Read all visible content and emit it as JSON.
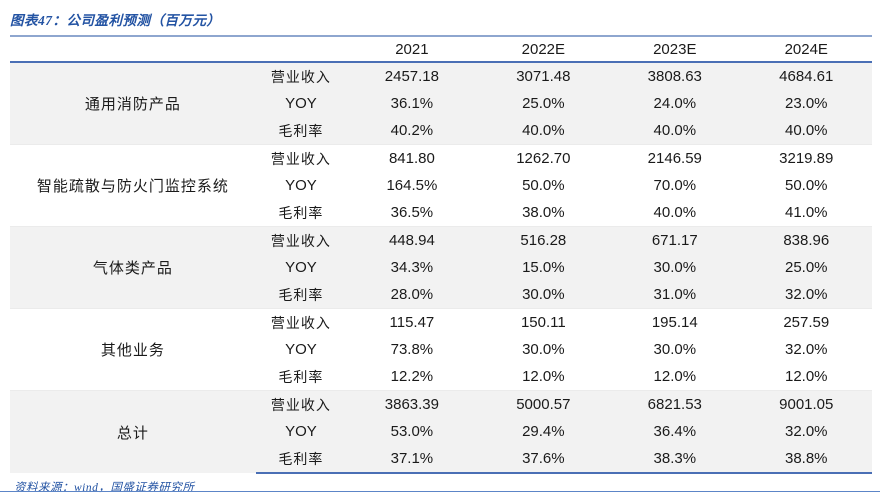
{
  "title": "图表47：公司盈利预测（百万元）",
  "footer": {
    "source": "资料来源：wind，国盛证券研究所"
  },
  "colors": {
    "accent_blue": "#2353a3",
    "rule_blue": "#4a6fb5",
    "rule_light_blue": "#8ea6cf",
    "stripe_bg": "#f2f2f2",
    "text": "#1a1a1a"
  },
  "table": {
    "year_headers": [
      "2021",
      "2022E",
      "2023E",
      "2024E"
    ],
    "metric_labels": [
      "营业收入",
      "YOY",
      "毛利率"
    ],
    "groups": [
      {
        "name": "通用消防产品",
        "rows": [
          [
            "2457.18",
            "3071.48",
            "3808.63",
            "4684.61"
          ],
          [
            "36.1%",
            "25.0%",
            "24.0%",
            "23.0%"
          ],
          [
            "40.2%",
            "40.0%",
            "40.0%",
            "40.0%"
          ]
        ]
      },
      {
        "name": "智能疏散与防火门监控系统",
        "rows": [
          [
            "841.80",
            "1262.70",
            "2146.59",
            "3219.89"
          ],
          [
            "164.5%",
            "50.0%",
            "70.0%",
            "50.0%"
          ],
          [
            "36.5%",
            "38.0%",
            "40.0%",
            "41.0%"
          ]
        ]
      },
      {
        "name": "气体类产品",
        "rows": [
          [
            "448.94",
            "516.28",
            "671.17",
            "838.96"
          ],
          [
            "34.3%",
            "15.0%",
            "30.0%",
            "25.0%"
          ],
          [
            "28.0%",
            "30.0%",
            "31.0%",
            "32.0%"
          ]
        ]
      },
      {
        "name": "其他业务",
        "rows": [
          [
            "115.47",
            "150.11",
            "195.14",
            "257.59"
          ],
          [
            "73.8%",
            "30.0%",
            "30.0%",
            "32.0%"
          ],
          [
            "12.2%",
            "12.0%",
            "12.0%",
            "12.0%"
          ]
        ]
      },
      {
        "name": "总计",
        "rows": [
          [
            "3863.39",
            "5000.57",
            "6821.53",
            "9001.05"
          ],
          [
            "53.0%",
            "29.4%",
            "36.4%",
            "32.0%"
          ],
          [
            "37.1%",
            "37.6%",
            "38.3%",
            "38.8%"
          ]
        ]
      }
    ]
  },
  "chart_data": {
    "type": "table",
    "title": "公司盈利预测（百万元）",
    "columns": [
      "2021",
      "2022E",
      "2023E",
      "2024E"
    ],
    "row_groups": [
      {
        "group": "通用消防产品",
        "营业收入": [
          2457.18,
          3071.48,
          3808.63,
          4684.61
        ],
        "YOY": [
          "36.1%",
          "25.0%",
          "24.0%",
          "23.0%"
        ],
        "毛利率": [
          "40.2%",
          "40.0%",
          "40.0%",
          "40.0%"
        ]
      },
      {
        "group": "智能疏散与防火门监控系统",
        "营业收入": [
          841.8,
          1262.7,
          2146.59,
          3219.89
        ],
        "YOY": [
          "164.5%",
          "50.0%",
          "70.0%",
          "50.0%"
        ],
        "毛利率": [
          "36.5%",
          "38.0%",
          "40.0%",
          "41.0%"
        ]
      },
      {
        "group": "气体类产品",
        "营业收入": [
          448.94,
          516.28,
          671.17,
          838.96
        ],
        "YOY": [
          "34.3%",
          "15.0%",
          "30.0%",
          "25.0%"
        ],
        "毛利率": [
          "28.0%",
          "30.0%",
          "31.0%",
          "32.0%"
        ]
      },
      {
        "group": "其他业务",
        "营业收入": [
          115.47,
          150.11,
          195.14,
          257.59
        ],
        "YOY": [
          "73.8%",
          "30.0%",
          "30.0%",
          "32.0%"
        ],
        "毛利率": [
          "12.2%",
          "12.0%",
          "12.0%",
          "12.0%"
        ]
      },
      {
        "group": "总计",
        "营业收入": [
          3863.39,
          5000.57,
          6821.53,
          9001.05
        ],
        "YOY": [
          "53.0%",
          "29.4%",
          "36.4%",
          "32.0%"
        ],
        "毛利率": [
          "37.1%",
          "37.6%",
          "38.3%",
          "38.8%"
        ]
      }
    ]
  }
}
